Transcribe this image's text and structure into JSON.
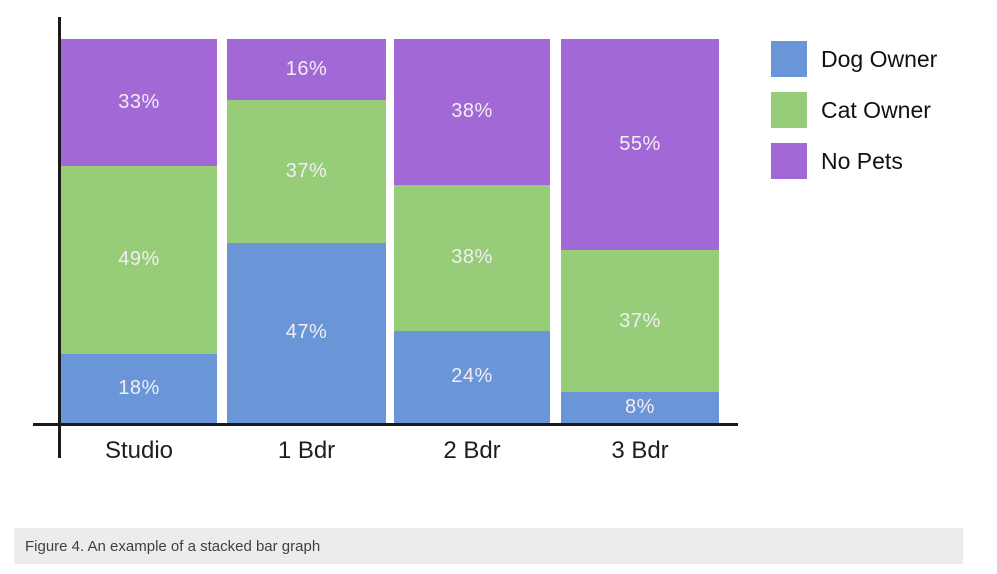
{
  "chart_data": {
    "type": "bar",
    "stacked": true,
    "title": "",
    "xlabel": "",
    "ylabel": "",
    "ylim": [
      0,
      100
    ],
    "grid": false,
    "legend_position": "right",
    "value_suffix": "%",
    "categories": [
      "Studio",
      "1 Bdr",
      "2 Bdr",
      "3 Bdr"
    ],
    "series": [
      {
        "name": "Dog Owner",
        "color": "#6A96D8",
        "values": [
          18,
          47,
          24,
          8
        ]
      },
      {
        "name": "Cat Owner",
        "color": "#97CD78",
        "values": [
          49,
          37,
          38,
          37
        ]
      },
      {
        "name": "No Pets",
        "color": "#A269D6",
        "values": [
          33,
          16,
          38,
          55
        ]
      }
    ]
  },
  "legend": {
    "items": [
      {
        "label": "Dog Owner",
        "color": "#6A96D8"
      },
      {
        "label": "Cat Owner",
        "color": "#97CD78"
      },
      {
        "label": "No Pets",
        "color": "#A269D6"
      }
    ]
  },
  "caption": {
    "text": "Figure 4. An example of a stacked bar graph"
  },
  "colors": {
    "axis": "#1a1a1a",
    "segment_label": "#F1EDF3",
    "caption_bg": "#ECECEC",
    "caption_text": "#3f3f46"
  }
}
